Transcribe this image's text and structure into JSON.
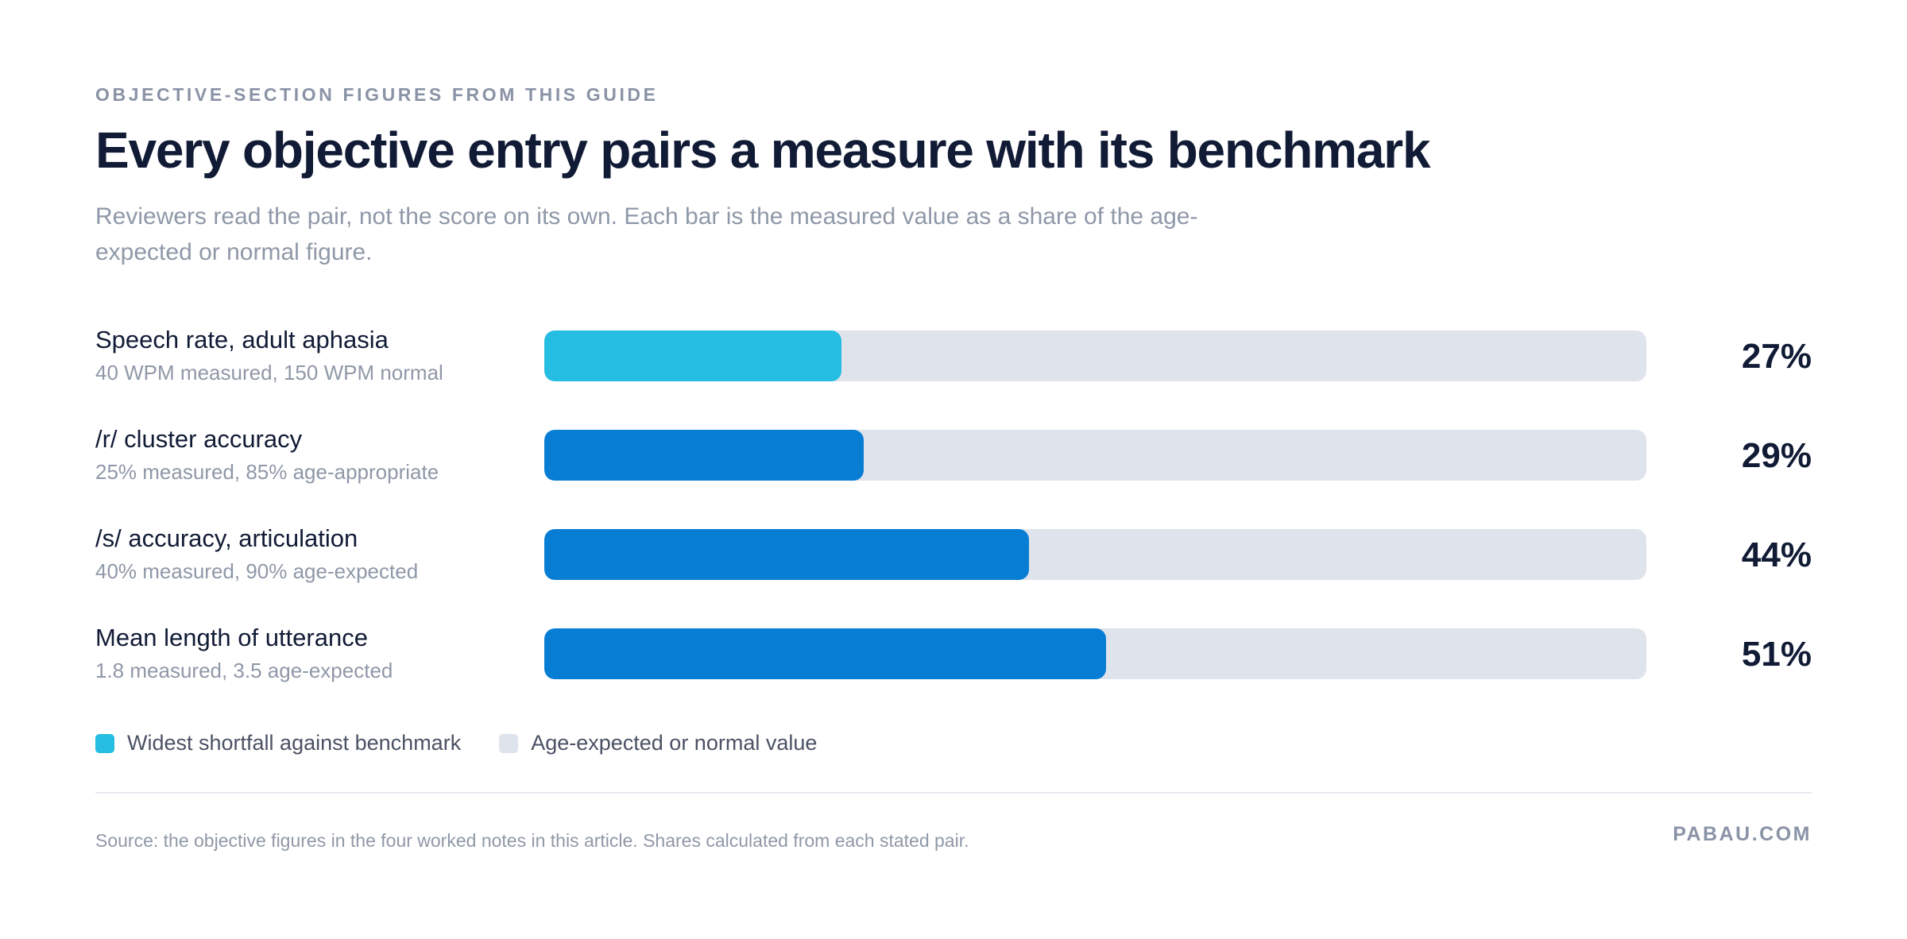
{
  "header": {
    "eyebrow": "OBJECTIVE-SECTION FIGURES FROM THIS GUIDE",
    "title": "Every objective entry pairs a measure with its benchmark",
    "subtitle": "Reviewers read the pair, not the score on its own. Each bar is the measured value as a share of the age-expected or normal figure."
  },
  "chart_data": {
    "type": "bar",
    "orientation": "horizontal",
    "categories": [
      "Speech rate, adult aphasia",
      "/r/ cluster accuracy",
      "/s/ accuracy, articulation",
      "Mean length of utterance"
    ],
    "details": [
      "40 WPM measured, 150 WPM normal",
      "25% measured, 85% age-appropriate",
      "40% measured, 90% age-expected",
      "1.8 measured, 3.5 age-expected"
    ],
    "values": [
      27,
      29,
      44,
      51
    ],
    "value_labels": [
      "27%",
      "29%",
      "44%",
      "51%"
    ],
    "highlight_index": 0,
    "xlim": [
      0,
      100
    ],
    "colors": {
      "highlight": "#25bde2",
      "bar": "#077dd4",
      "track": "#dfe3ec"
    },
    "legend": [
      {
        "label": "Widest shortfall against benchmark",
        "color": "#25bde2"
      },
      {
        "label": "Age-expected or normal value",
        "color": "#dfe3ec"
      }
    ]
  },
  "footer": {
    "source": "Source: the objective figures in the four worked notes in this article. Shares calculated from each stated pair.",
    "brand": "PABAU.COM"
  }
}
